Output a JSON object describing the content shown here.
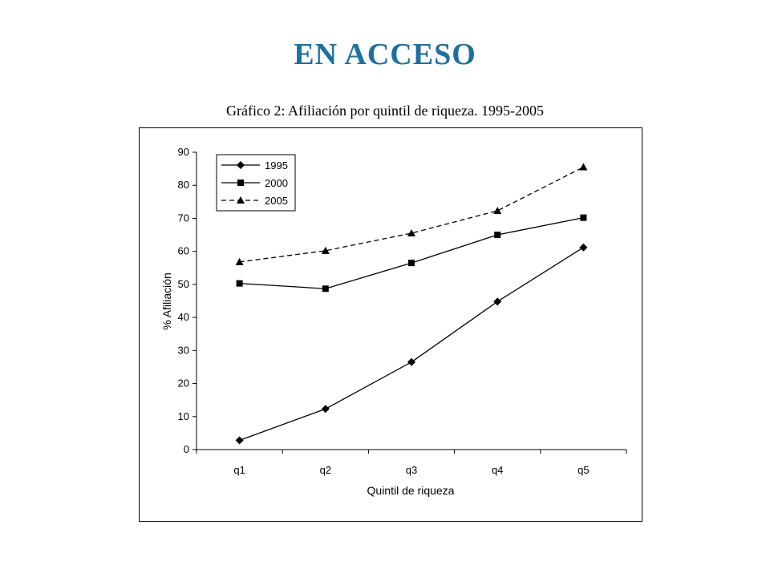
{
  "slide": {
    "title": "EN ACCESO"
  },
  "chart_data": {
    "type": "line",
    "title": "Gráfico 2: Afiliación por quintil de riqueza. 1995-2005",
    "xlabel": "Quintil de riqueza",
    "ylabel": "% Afiliación",
    "categories": [
      "q1",
      "q2",
      "q3",
      "q4",
      "q5"
    ],
    "ylim": [
      0,
      90
    ],
    "yticks": [
      0,
      10,
      20,
      30,
      40,
      50,
      60,
      70,
      80,
      90
    ],
    "grid": false,
    "legend_position": "top-left",
    "series": [
      {
        "name": "1995",
        "values": [
          2.8,
          12.3,
          26.5,
          44.8,
          61.2
        ],
        "marker": "diamond",
        "dash": "solid",
        "color": "#000000"
      },
      {
        "name": "2000",
        "values": [
          50.3,
          48.7,
          56.5,
          65.0,
          70.2
        ],
        "marker": "square",
        "dash": "solid",
        "color": "#000000"
      },
      {
        "name": "2005",
        "values": [
          56.8,
          60.2,
          65.5,
          72.3,
          85.5
        ],
        "marker": "triangle",
        "dash": "dashed",
        "color": "#000000"
      }
    ]
  }
}
